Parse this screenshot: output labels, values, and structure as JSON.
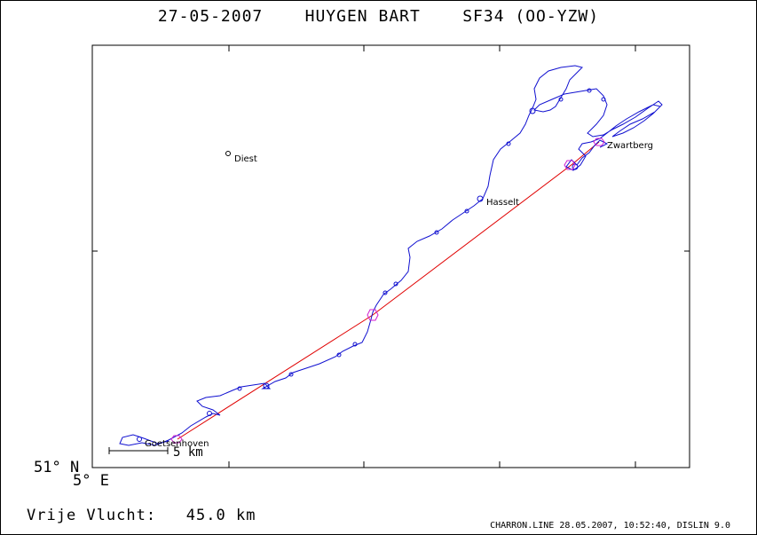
{
  "header": {
    "date": "27-05-2007",
    "pilot": "HUYGEN BART",
    "glider": "SF34 (OO-YZW)"
  },
  "map": {
    "lat_label": "51° N",
    "lon_label": "5° E",
    "scale_label": "5 km",
    "places": [
      {
        "name": "Diest"
      },
      {
        "name": "Hasselt"
      },
      {
        "name": "Zwartberg"
      },
      {
        "name": "Goetsenhoven"
      }
    ],
    "colors": {
      "track": "#1010d0",
      "course_line": "#e00000",
      "turnpoint": "#d020d0"
    }
  },
  "footer": {
    "distance_label": "Vrije Vlucht:",
    "distance_value": "45.0 km",
    "credit": "CHARRON.LINE 28.05.2007, 10:52:40, DISLIN 9.0"
  }
}
